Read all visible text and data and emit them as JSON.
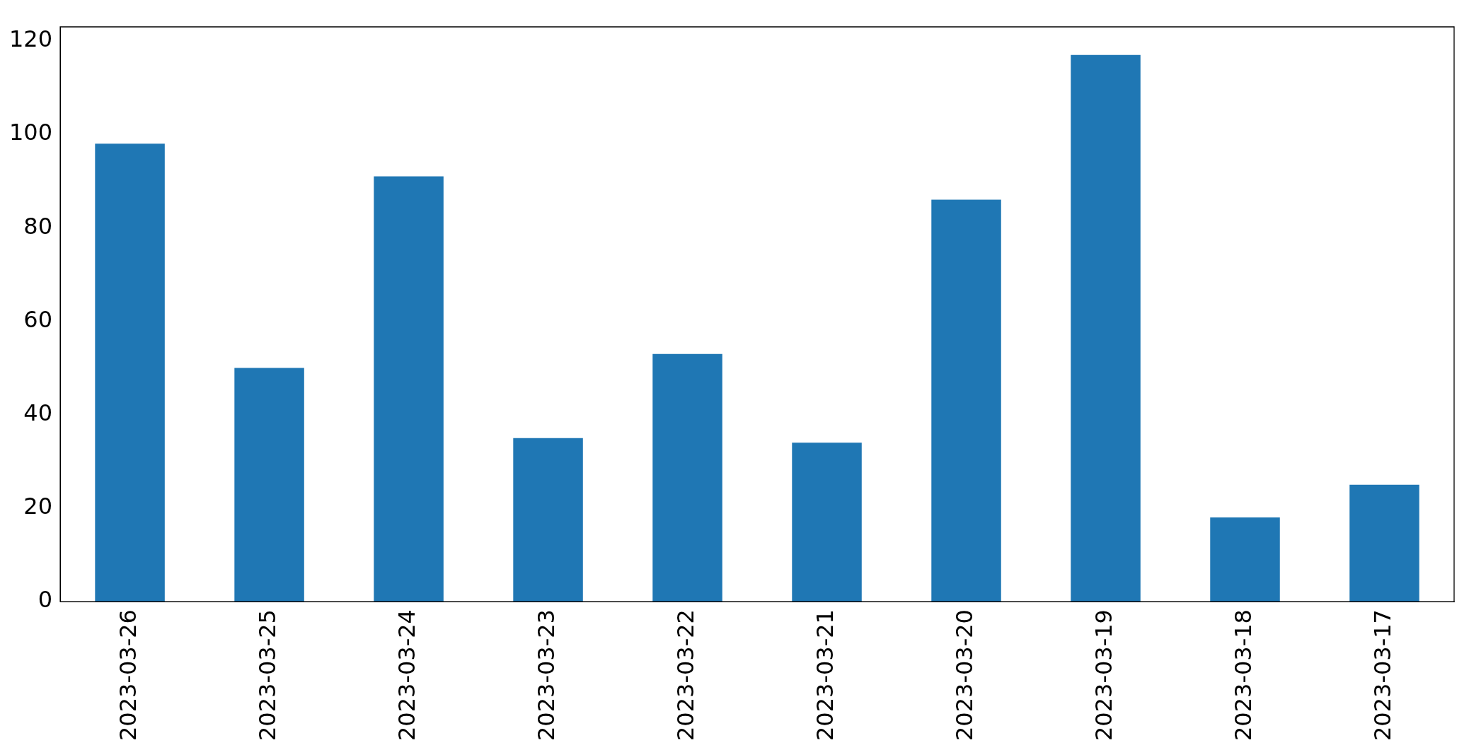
{
  "chart_data": {
    "type": "bar",
    "categories": [
      "2023-03-26",
      "2023-03-25",
      "2023-03-24",
      "2023-03-23",
      "2023-03-22",
      "2023-03-21",
      "2023-03-20",
      "2023-03-19",
      "2023-03-18",
      "2023-03-17"
    ],
    "values": [
      98,
      50,
      91,
      35,
      53,
      34,
      86,
      117,
      18,
      25
    ],
    "color": "#1f77b4",
    "ylim": [
      0,
      123
    ],
    "yticks": [
      0,
      20,
      40,
      60,
      80,
      100,
      120
    ],
    "grid": false,
    "legend": false
  }
}
